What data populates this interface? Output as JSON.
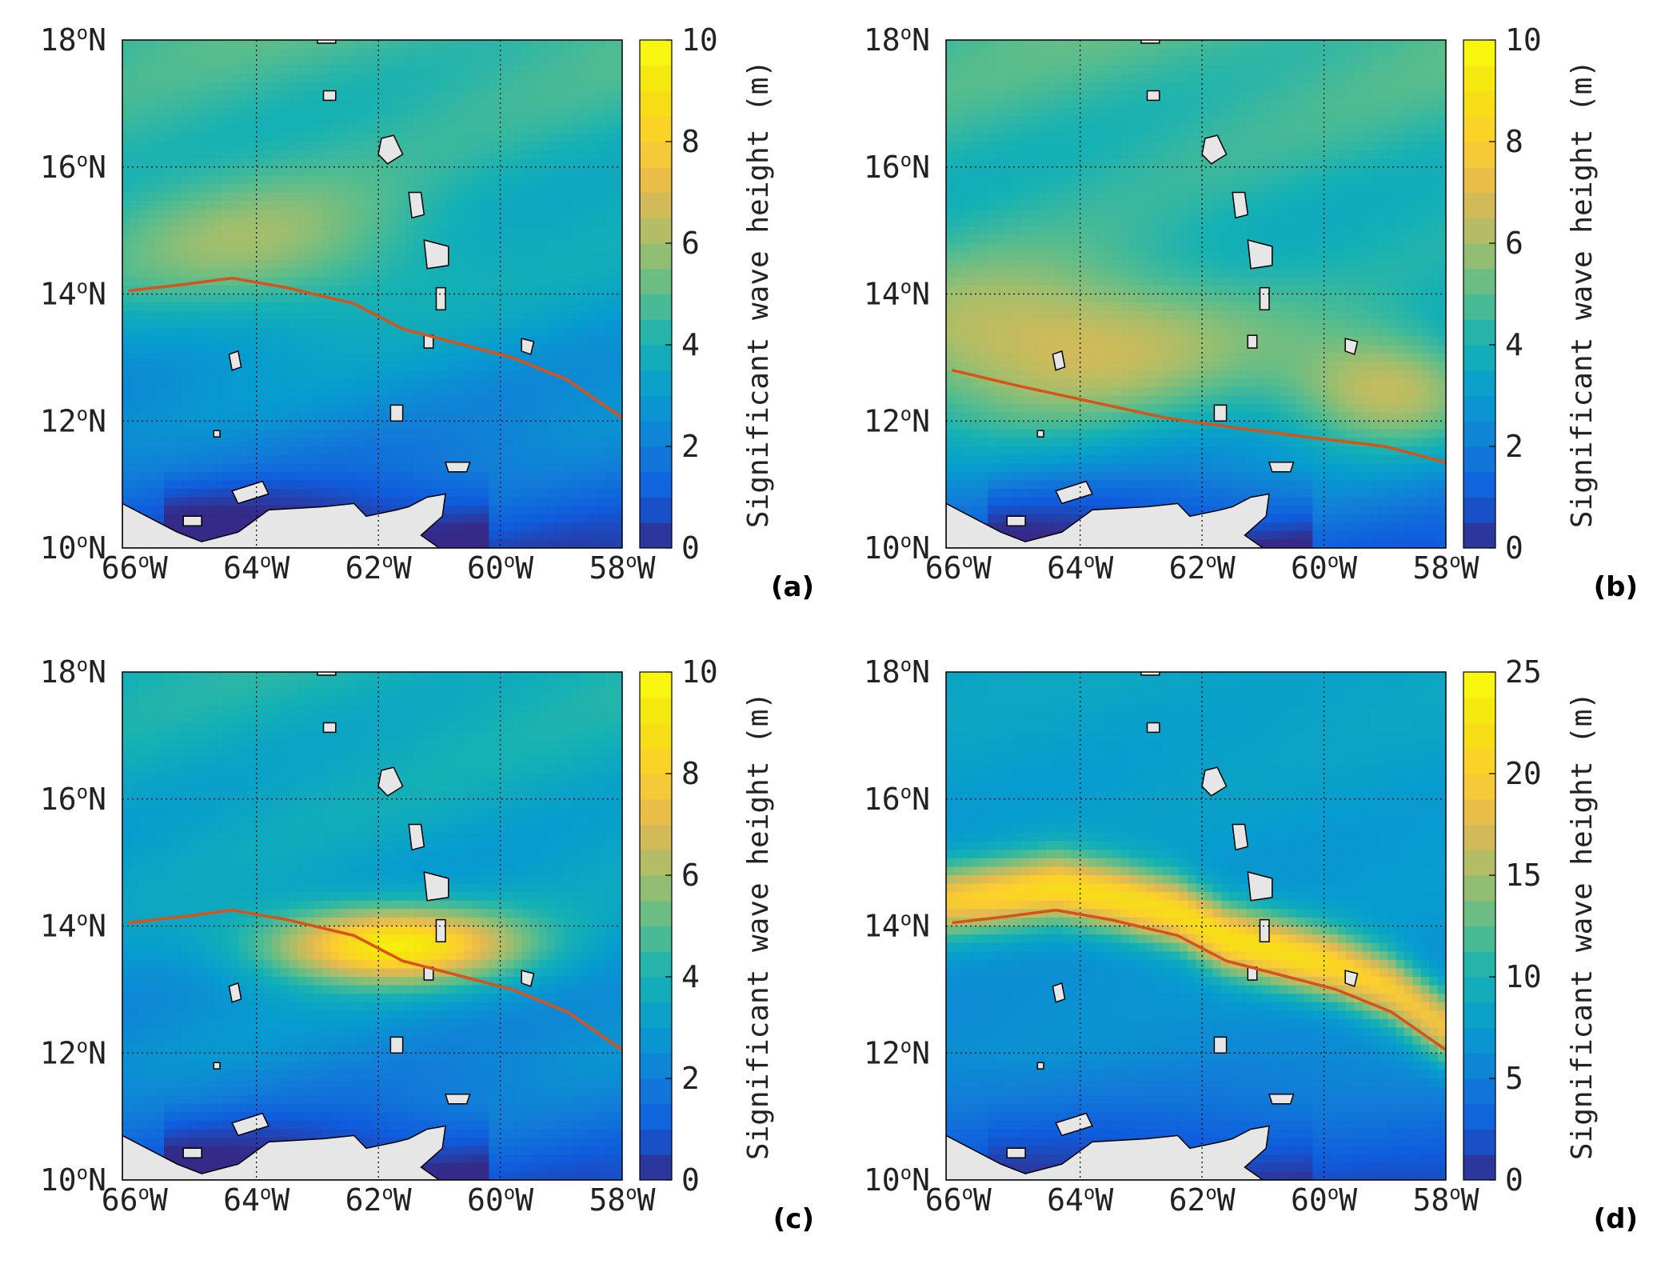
{
  "figure": {
    "panels": [
      {
        "id": "a",
        "label": "(a)",
        "cmax": 10,
        "cticks": [
          0,
          2,
          4,
          6,
          8,
          10
        ],
        "track": [
          [
            -66.1,
            14.05
          ],
          [
            -65.2,
            14.15
          ],
          [
            -64.4,
            14.25
          ],
          [
            -63.5,
            14.1
          ],
          [
            -62.4,
            13.85
          ],
          [
            -61.6,
            13.45
          ],
          [
            -60.8,
            13.25
          ],
          [
            -59.8,
            13.0
          ],
          [
            -58.9,
            12.65
          ],
          [
            -58.0,
            12.05
          ]
        ],
        "field": {
          "base": 3.2,
          "north": 1.5,
          "south": -1.0,
          "band_lat": 14.7,
          "band_amp": 2.2,
          "band_width": 1.2,
          "band_lon_center": -64.0,
          "band_lon_width": 3.0
        }
      },
      {
        "id": "b",
        "label": "(b)",
        "cmax": 10,
        "cticks": [
          0,
          2,
          4,
          6,
          8,
          10
        ],
        "track": [
          [
            -66.1,
            12.8
          ],
          [
            -65.0,
            12.55
          ],
          [
            -63.8,
            12.3
          ],
          [
            -62.6,
            12.05
          ],
          [
            -61.5,
            11.9
          ],
          [
            -60.3,
            11.75
          ],
          [
            -59.0,
            11.6
          ],
          [
            -58.0,
            11.35
          ]
        ],
        "field": {
          "base": 3.6,
          "north": 1.2,
          "south": -1.1,
          "band_lat": 13.2,
          "band_amp": 3.6,
          "band_width": 1.3,
          "band_lon_center": -64.5,
          "band_lon_width": 3.5,
          "band2_lat": 12.5,
          "band2_amp": 3.4,
          "band2_lon_center": -59.0,
          "band2_lon_width": 1.6
        }
      },
      {
        "id": "c",
        "label": "(c)",
        "cmax": 10,
        "cticks": [
          0,
          2,
          4,
          6,
          8,
          10
        ],
        "track": [
          [
            -66.1,
            14.05
          ],
          [
            -65.2,
            14.15
          ],
          [
            -64.4,
            14.25
          ],
          [
            -63.5,
            14.1
          ],
          [
            -62.4,
            13.85
          ],
          [
            -61.6,
            13.45
          ],
          [
            -60.8,
            13.25
          ],
          [
            -59.8,
            13.0
          ],
          [
            -58.9,
            12.65
          ],
          [
            -58.0,
            12.05
          ]
        ],
        "field": {
          "base": 3.0,
          "north": 1.0,
          "south": -1.0,
          "band_lat": 13.7,
          "band_amp": 6.4,
          "band_width": 0.6,
          "band_lon_center": -61.8,
          "band_lon_width": 2.1
        }
      },
      {
        "id": "d",
        "label": "(d)",
        "cmax": 25,
        "cticks": [
          0,
          5,
          10,
          15,
          20,
          25
        ],
        "track": [
          [
            -66.1,
            14.05
          ],
          [
            -65.2,
            14.15
          ],
          [
            -64.4,
            14.25
          ],
          [
            -63.5,
            14.1
          ],
          [
            -62.4,
            13.85
          ],
          [
            -61.6,
            13.45
          ],
          [
            -60.8,
            13.25
          ],
          [
            -59.8,
            13.0
          ],
          [
            -58.9,
            12.65
          ],
          [
            -58.0,
            12.05
          ]
        ],
        "field": {
          "base": 7.0,
          "north": 1.5,
          "south": -3.5,
          "band_lat": 14.3,
          "band_amp": 15.0,
          "band_width": 0.55,
          "band_lon_center": -62.0,
          "band_lon_width": 9.0,
          "band_follow": true
        }
      }
    ],
    "colorbar_title": "Significant wave height (m)",
    "lon_ticks": [
      "66",
      "64",
      "62",
      "60",
      "58"
    ],
    "lon_suffix": "W",
    "lat_ticks": [
      "10",
      "12",
      "14",
      "16",
      "18"
    ],
    "lat_suffix": "N",
    "degree_mark": "o",
    "colors": {
      "track": "#d95319",
      "land": "#e6e6e6",
      "coast": "#000000",
      "grid": "#000000"
    }
  }
}
